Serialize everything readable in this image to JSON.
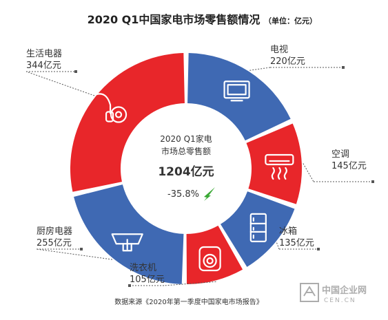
{
  "colors": {
    "red": "#e8262a",
    "blue": "#3f69b3",
    "leader": "#555555",
    "arrow": "#3aa935"
  },
  "chart_data": {
    "type": "pie",
    "title": "2020 Q1中国家电市场零售额情况",
    "unit": "（单位：亿元）",
    "slices": [
      {
        "name": "电视",
        "value": 220,
        "label": "220亿元",
        "color": "blue",
        "icon": "tv-icon"
      },
      {
        "name": "空调",
        "value": 145,
        "label": "145亿元",
        "color": "red",
        "icon": "air-conditioner-icon"
      },
      {
        "name": "冰箱",
        "value": 135,
        "label": "135亿元",
        "color": "blue",
        "icon": "refrigerator-icon"
      },
      {
        "name": "洗衣机",
        "value": 105,
        "label": "105亿元",
        "color": "red",
        "icon": "washing-machine-icon"
      },
      {
        "name": "厨房电器",
        "value": 255,
        "label": "255亿元",
        "color": "blue",
        "icon": "range-hood-icon"
      },
      {
        "name": "生活电器",
        "value": 344,
        "label": "344亿元",
        "color": "red",
        "icon": "vacuum-cleaner-icon"
      }
    ],
    "center": {
      "line1": "2020 Q1家电",
      "line2": "市场总零售额",
      "total": "1204亿元",
      "change": "-35.8%"
    }
  },
  "caption": "数据来源《2020年第一季度中国家电市场报告》",
  "watermark": {
    "cn": "中国企业网",
    "en": "CEN.CN"
  }
}
